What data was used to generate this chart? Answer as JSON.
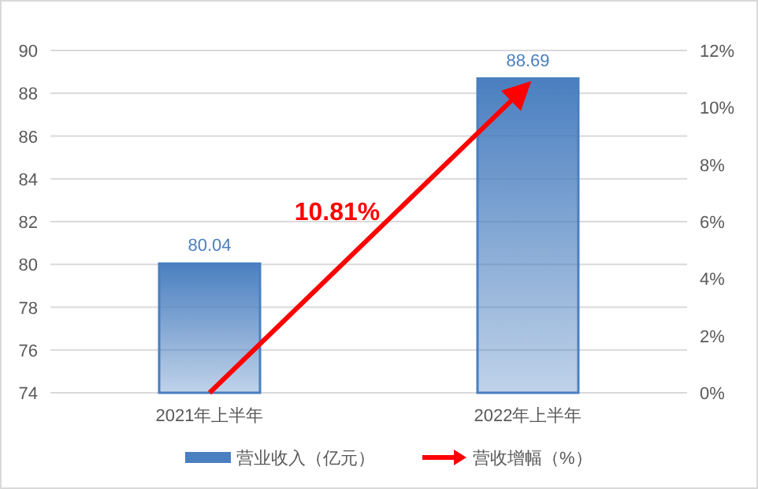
{
  "chart_data": {
    "type": "bar",
    "categories": [
      "2021年上半年",
      "2022年上半年"
    ],
    "series": [
      {
        "name": "营业收入（亿元）",
        "color": "#4a7fc0",
        "values": [
          80.04,
          88.69
        ],
        "value_labels": [
          "80.04",
          "88.69"
        ]
      },
      {
        "name": "营收增幅（%）",
        "type": "line",
        "axis": "y2",
        "color": "#ff0000",
        "values": [
          0,
          10.81
        ]
      }
    ],
    "ylim": [
      74,
      90
    ],
    "yticks": [
      74,
      76,
      78,
      80,
      82,
      84,
      86,
      88,
      90
    ],
    "y2lim": [
      0,
      12
    ],
    "y2ticks": [
      {
        "value": 0,
        "label": "0%"
      },
      {
        "value": 2,
        "label": "2%"
      },
      {
        "value": 4,
        "label": "4%"
      },
      {
        "value": 6,
        "label": "6%"
      },
      {
        "value": 8,
        "label": "8%"
      },
      {
        "value": 10,
        "label": "10%"
      },
      {
        "value": 12,
        "label": "12%"
      }
    ],
    "annotations": [
      "10.81%"
    ],
    "grid": "y",
    "legend": "bottom",
    "marker": "none"
  }
}
